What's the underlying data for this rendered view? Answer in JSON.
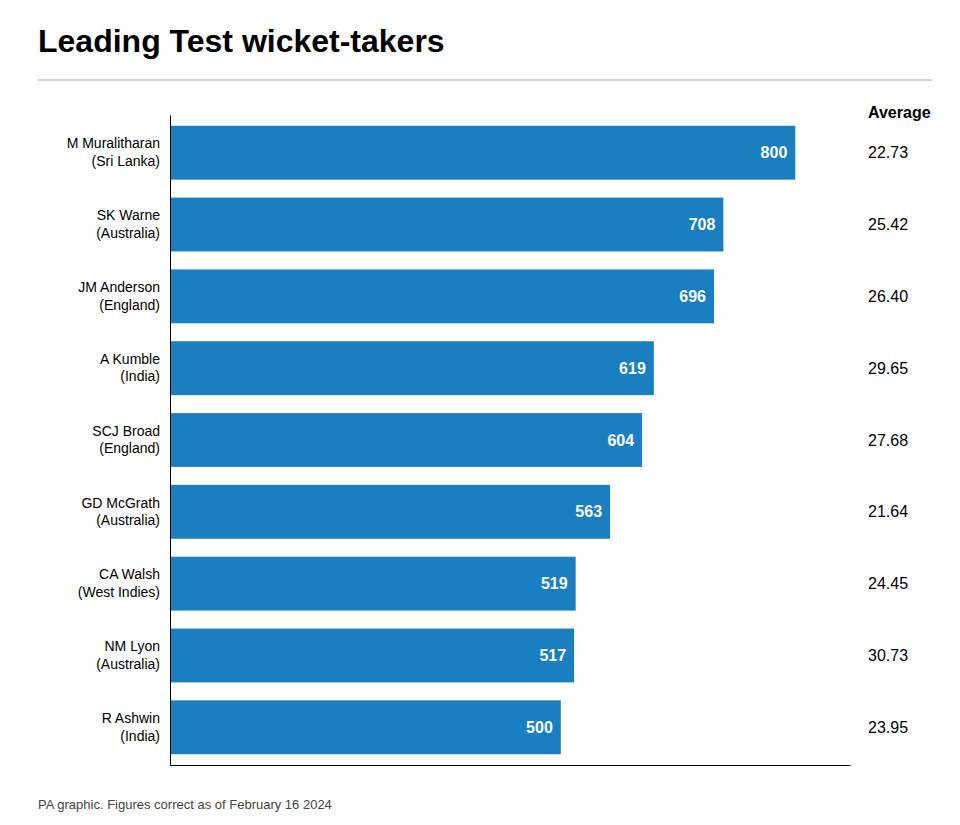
{
  "chart_data": {
    "type": "bar",
    "orientation": "horizontal",
    "title": "Leading Test wicket-takers",
    "categories": [
      "M Muralitharan\n(Sri Lanka)",
      "SK Warne\n(Australia)",
      "JM Anderson\n(England)",
      "A Kumble\n(India)",
      "SCJ Broad\n(England)",
      "GD McGrath\n(Australia)",
      "CA Walsh\n(West Indies)",
      "NM Lyon\n(Australia)",
      "R Ashwin\n(India)"
    ],
    "values": [
      800,
      708,
      696,
      619,
      604,
      563,
      519,
      517,
      500
    ],
    "color": "#1a7fc1",
    "data_labels": true,
    "average_header": "Average",
    "averages": [
      "22.73",
      "25.42",
      "26.40",
      "29.65",
      "27.68",
      "21.64",
      "24.45",
      "30.73",
      "23.95"
    ],
    "xlim": [
      0,
      870
    ],
    "xticks": [],
    "tick_labels": "y",
    "grid": false,
    "footer": "PA graphic. Figures correct as of February 16 2024"
  }
}
